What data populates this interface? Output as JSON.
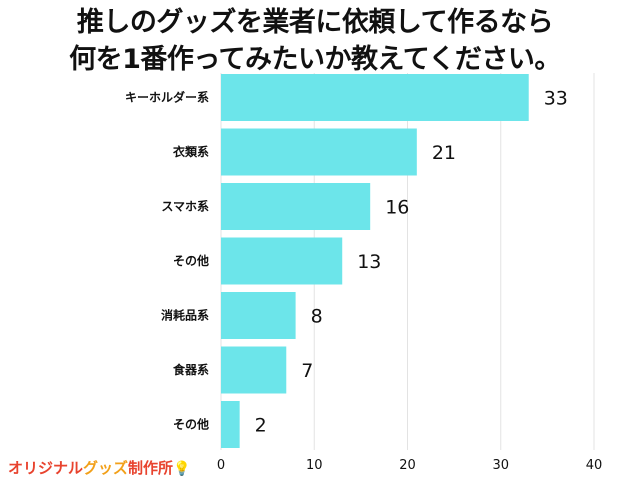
{
  "title": {
    "line1": "推しのグッズを業者に依頼して作るなら",
    "line2": "何を1番作ってみたいか教えてください。"
  },
  "logo": {
    "part1": "オリジナル",
    "part2": "グッズ",
    "part3": "制作所",
    "icon": "lightbulb-icon"
  },
  "colors": {
    "bar": "#6ce5ea",
    "grid": "#e3e3e3",
    "text": "#111111"
  },
  "chart_data": {
    "type": "bar",
    "orientation": "horizontal",
    "title": "推しのグッズを業者に依頼して作るなら何を1番作ってみたいか教えてください。",
    "categories": [
      "キーホルダー系",
      "衣類系",
      "スマホ系",
      "その他",
      "消耗品系",
      "食器系",
      "その他"
    ],
    "values": [
      33,
      21,
      16,
      13,
      8,
      7,
      2
    ],
    "xlim": [
      0,
      40
    ],
    "xticks": [
      0,
      10,
      20,
      30,
      40
    ],
    "tick_labels": [
      "0",
      "10",
      "20",
      "30",
      "40"
    ],
    "grid": true,
    "xlabel": "",
    "ylabel": ""
  }
}
